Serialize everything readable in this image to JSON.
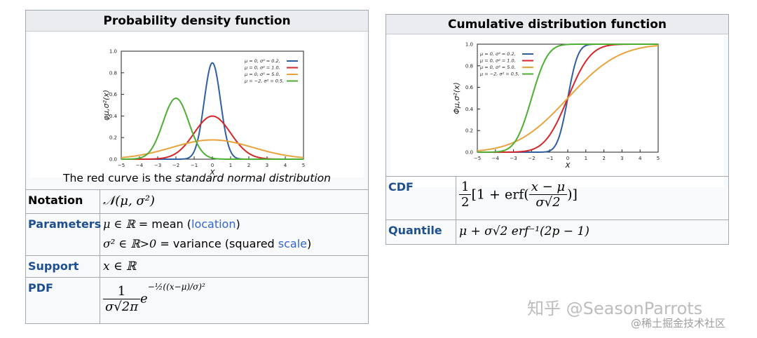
{
  "pdf_box": {
    "title": "Probability density function",
    "caption_pre": "The red curve is the ",
    "caption_em": "standard normal distribution",
    "ylabel": "φμ,σ²(x)",
    "xlabel": "x",
    "x_ticks": [
      "−5",
      "−4",
      "−3",
      "−2",
      "−1",
      "0",
      "1",
      "2",
      "3",
      "4",
      "5"
    ],
    "y_ticks": [
      "0.0",
      "0.2",
      "0.4",
      "0.6",
      "0.8",
      "1.0"
    ],
    "legend": [
      "μ = 0,   σ² = 0.2,",
      "μ = 0,   σ² = 1.0,",
      "μ = 0,   σ² = 5.0,",
      "μ = −2,  σ² = 0.5,"
    ],
    "rows": {
      "notation_label": "Notation",
      "notation_value": "𝒩(μ, σ²)",
      "parameters_label": "Parameters",
      "param1_math": "μ ∈ ℝ",
      "param1_eq": " = mean (",
      "param1_link": "location",
      "param1_close": ")",
      "param2_math": "σ² ∈ ℝ>0",
      "param2_eq": " = variance (squared ",
      "param2_link": "scale",
      "param2_close": ")",
      "support_label": "Support",
      "support_value": "x ∈ ℝ",
      "pdf_label": "PDF",
      "pdf_num": "1",
      "pdf_den": "σ√2π",
      "pdf_exp": "e",
      "pdf_power": "−½((x−μ)/σ)²"
    }
  },
  "cdf_box": {
    "title": "Cumulative distribution function",
    "ylabel": "Φμ,σ²(x)",
    "xlabel": "x",
    "x_ticks": [
      "−5",
      "−4",
      "−3",
      "−2",
      "−1",
      "0",
      "1",
      "2",
      "3",
      "4",
      "5"
    ],
    "y_ticks": [
      "0.0",
      "0.2",
      "0.4",
      "0.6",
      "0.8",
      "1.0"
    ],
    "legend": [
      "μ = 0,   σ² = 0.2,",
      "μ = 0,   σ² = 1.0,",
      "μ = 0,   σ² = 5.0,",
      "μ = −2,  σ² = 0.5,"
    ],
    "rows": {
      "cdf_label": "CDF",
      "cdf_half_num": "1",
      "cdf_half_den": "2",
      "cdf_open": "[1 + erf(",
      "cdf_num": "x − μ",
      "cdf_den": "σ√2",
      "cdf_close": ")]",
      "quantile_label": "Quantile",
      "quantile_value": "μ + σ√2 erf⁻¹(2p − 1)"
    }
  },
  "series_colors": [
    "#2f5fa3",
    "#d62728",
    "#e8a33d",
    "#4caf32"
  ],
  "watermark": {
    "main": "知乎 @SeasonParrots",
    "sub": "@稀土掘金技术社区"
  },
  "chart_data": [
    {
      "type": "line",
      "title": "Probability density function",
      "xlabel": "x",
      "ylabel": "φμ,σ²(x)",
      "xlim": [
        -5,
        5
      ],
      "ylim": [
        0,
        1.0
      ],
      "series": [
        {
          "name": "μ = 0, σ² = 0.2",
          "mu": 0,
          "var": 0.2
        },
        {
          "name": "μ = 0, σ² = 1.0",
          "mu": 0,
          "var": 1.0
        },
        {
          "name": "μ = 0, σ² = 5.0",
          "mu": 0,
          "var": 5.0
        },
        {
          "name": "μ = −2, σ² = 0.5",
          "mu": -2,
          "var": 0.5
        }
      ]
    },
    {
      "type": "line",
      "title": "Cumulative distribution function",
      "xlabel": "x",
      "ylabel": "Φμ,σ²(x)",
      "xlim": [
        -5,
        5
      ],
      "ylim": [
        0,
        1.0
      ],
      "series": [
        {
          "name": "μ = 0, σ² = 0.2",
          "mu": 0,
          "var": 0.2
        },
        {
          "name": "μ = 0, σ² = 1.0",
          "mu": 0,
          "var": 1.0
        },
        {
          "name": "μ = 0, σ² = 5.0",
          "mu": 0,
          "var": 5.0
        },
        {
          "name": "μ = −2, σ² = 0.5",
          "mu": -2,
          "var": 0.5
        }
      ]
    }
  ]
}
